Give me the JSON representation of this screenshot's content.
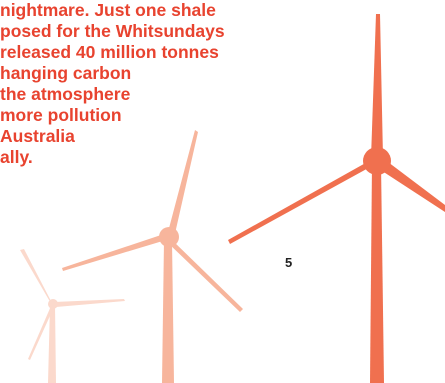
{
  "body_text": {
    "lines": [
      "nightmare. Just one shale",
      "posed for the Whitsundays",
      "released 40 million tonnes",
      "hanging carbon",
      "the atmosphere",
      "more pollution",
      "Australia",
      "ally."
    ]
  },
  "page_number": "5",
  "colors": {
    "text": "#e8432f",
    "page_number": "#222222",
    "turbine_light": "#fbd9cc",
    "turbine_mid": "#f7b59c",
    "turbine_dark": "#f0704f"
  },
  "decoration": {
    "graphic": "wind-turbines-illustration"
  }
}
